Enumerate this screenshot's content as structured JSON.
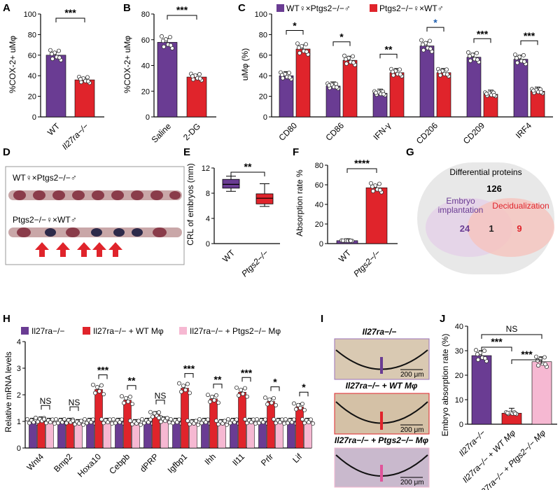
{
  "colors": {
    "purple": "#6a3c93",
    "red": "#e0242b",
    "pink": "#f6b8d2",
    "venn_left": "#e7d9ea",
    "venn_right": "#f8c9c4",
    "venn_bg": "#e6e6e6",
    "sig_blue": "#2060b0"
  },
  "panel_letters": {
    "a": "A",
    "b": "B",
    "c": "C",
    "d": "D",
    "e": "E",
    "f": "F",
    "g": "G",
    "h": "H",
    "i": "I",
    "j": "J"
  },
  "panels": {
    "a": {
      "ylabel": "%COX-2+ uMφ",
      "ylim": [
        0,
        100
      ],
      "yticks": [
        0,
        20,
        40,
        60,
        80,
        100
      ],
      "categories": [
        "WT",
        "Il27ra−/−"
      ],
      "values": [
        60,
        36
      ],
      "sig": "***"
    },
    "b": {
      "ylabel": "%COX-2+ uMφ",
      "ylim": [
        0,
        80
      ],
      "yticks": [
        0,
        20,
        40,
        60,
        80
      ],
      "categories": [
        "Saline",
        "2-DG"
      ],
      "values": [
        58,
        31
      ],
      "sig": "***"
    },
    "c": {
      "ylabel": "uMφ (%)",
      "ylim": [
        0,
        100
      ],
      "yticks": [
        0,
        20,
        40,
        60,
        80,
        100
      ],
      "legend": [
        "WT♀×Ptgs2−/−♂",
        "Ptgs2−/−♀×WT♂"
      ],
      "categories": [
        "CD80",
        "CD86",
        "IFN-γ",
        "CD206",
        "CD209",
        "IRF4"
      ],
      "series": [
        {
          "name": "WT♀×Ptgs2−/−♂",
          "values": [
            40,
            30,
            23,
            69,
            58,
            56
          ]
        },
        {
          "name": "Ptgs2−/−♀×WT♂",
          "values": [
            66,
            55,
            43,
            43,
            22,
            25
          ]
        }
      ],
      "sig": [
        "*",
        "*",
        "**",
        "*",
        "***",
        "***"
      ]
    },
    "d": {
      "label_top": "WT♀×Ptgs2−/−♂",
      "label_bottom": "Ptgs2−/−♀×WT♂"
    },
    "e": {
      "ylabel": "CRL of embryos (mm)",
      "ylim": [
        0,
        12
      ],
      "yticks": [
        0,
        4,
        8,
        12
      ],
      "categories": [
        "WT",
        "Ptgs2−/−"
      ],
      "boxes": [
        {
          "min": 8.3,
          "q1": 8.8,
          "median": 9.4,
          "q3": 10.2,
          "max": 10.7
        },
        {
          "min": 5.9,
          "q1": 6.3,
          "median": 7.2,
          "q3": 7.9,
          "max": 9.5
        }
      ],
      "sig": "**"
    },
    "f": {
      "ylabel": "Absorption rate %",
      "ylim": [
        0,
        80
      ],
      "yticks": [
        0,
        20,
        40,
        60,
        80
      ],
      "categories": [
        "WT",
        "Ptgs2−/−"
      ],
      "values": [
        3,
        57
      ],
      "sig": "****"
    },
    "g": {
      "title": "Differential proteins",
      "total": "126",
      "left_label_1": "Embryo",
      "left_label_2": "implantation",
      "right_label": "Decidualization",
      "left_only": "24",
      "overlap": "1",
      "right_only": "9"
    },
    "h": {
      "ylabel": "Relative mRNA levels",
      "ylim": [
        0,
        4
      ],
      "yticks": [
        0,
        1,
        2,
        3,
        4
      ],
      "legend": [
        "Il27ra−/−",
        "Il27ra−/− + WT Mφ",
        "Il27ra−/− + Ptgs2−/− Mφ"
      ],
      "categories": [
        "Wnt4",
        "Bmp2",
        "Hoxa10",
        "Cebpb",
        "dPRP",
        "Igfbp1",
        "Ihh",
        "Il11",
        "Prlr",
        "Lif"
      ],
      "series": [
        {
          "name": "Il27ra−/−",
          "values": [
            1.0,
            1.0,
            1.0,
            1.0,
            1.0,
            1.0,
            1.0,
            1.0,
            1.0,
            1.0
          ]
        },
        {
          "name": "Il27ra−/− + WT Mφ",
          "values": [
            1.05,
            1.0,
            2.2,
            1.8,
            1.25,
            2.25,
            1.85,
            2.1,
            1.75,
            1.55
          ]
        },
        {
          "name": "Il27ra−/− + Ptgs2−/− Mφ",
          "values": [
            1.0,
            0.95,
            1.0,
            0.95,
            1.05,
            0.95,
            0.95,
            1.0,
            1.0,
            1.0
          ]
        }
      ],
      "sig": [
        "NS",
        "NS",
        "***",
        "**",
        "NS",
        "***",
        "**",
        "***",
        "*",
        "*"
      ]
    },
    "i": {
      "titles": [
        "Il27ra−/−",
        "Il27ra−/− + WT Mφ",
        "Il27ra−/− + Ptgs2−/− Mφ"
      ],
      "scale": "200 μm"
    },
    "j": {
      "ylabel": "Embryo absorption rate (%)",
      "ylim": [
        0,
        40
      ],
      "yticks": [
        0,
        10,
        20,
        30,
        40
      ],
      "categories": [
        "Il27ra−/−",
        "Il27ra−/− + WT Mφ",
        "Il27ra−/− + Ptgs2−/− Mφ"
      ],
      "values": [
        28,
        4.5,
        25.5
      ],
      "sig": [
        "NS",
        "***",
        "***"
      ]
    }
  },
  "chart_data": [
    {
      "type": "bar",
      "title": "",
      "categories": [
        "WT",
        "Il27ra−/−"
      ],
      "values": [
        60,
        36
      ],
      "ylabel": "%COX-2+ uMφ",
      "ylim": [
        0,
        100
      ]
    },
    {
      "type": "bar",
      "title": "",
      "categories": [
        "Saline",
        "2-DG"
      ],
      "values": [
        58,
        31
      ],
      "ylabel": "%COX-2+ uMφ",
      "ylim": [
        0,
        80
      ]
    },
    {
      "type": "bar",
      "title": "",
      "categories": [
        "CD80",
        "CD86",
        "IFN-γ",
        "CD206",
        "CD209",
        "IRF4"
      ],
      "series": [
        {
          "name": "WT♀×Ptgs2−/−♂",
          "values": [
            40,
            30,
            23,
            69,
            58,
            56
          ]
        },
        {
          "name": "Ptgs2−/−♀×WT♂",
          "values": [
            66,
            55,
            43,
            43,
            22,
            25
          ]
        }
      ],
      "ylabel": "uMφ (%)",
      "ylim": [
        0,
        100
      ]
    },
    {
      "type": "box",
      "title": "",
      "categories": [
        "WT",
        "Ptgs2−/−"
      ],
      "ylabel": "CRL of embryos (mm)",
      "ylim": [
        0,
        12
      ]
    },
    {
      "type": "bar",
      "title": "",
      "categories": [
        "WT",
        "Ptgs2−/−"
      ],
      "values": [
        3,
        57
      ],
      "ylabel": "Absorption rate %",
      "ylim": [
        0,
        80
      ]
    },
    {
      "type": "bar",
      "title": "",
      "categories": [
        "Wnt4",
        "Bmp2",
        "Hoxa10",
        "Cebpb",
        "dPRP",
        "Igfbp1",
        "Ihh",
        "Il11",
        "Prlr",
        "Lif"
      ],
      "ylabel": "Relative mRNA levels",
      "ylim": [
        0,
        4
      ]
    },
    {
      "type": "bar",
      "title": "",
      "categories": [
        "Il27ra−/−",
        "Il27ra−/− + WT Mφ",
        "Il27ra−/− + Ptgs2−/− Mφ"
      ],
      "values": [
        28,
        4.5,
        25.5
      ],
      "ylabel": "Embryo absorption rate (%)",
      "ylim": [
        0,
        40
      ]
    }
  ]
}
